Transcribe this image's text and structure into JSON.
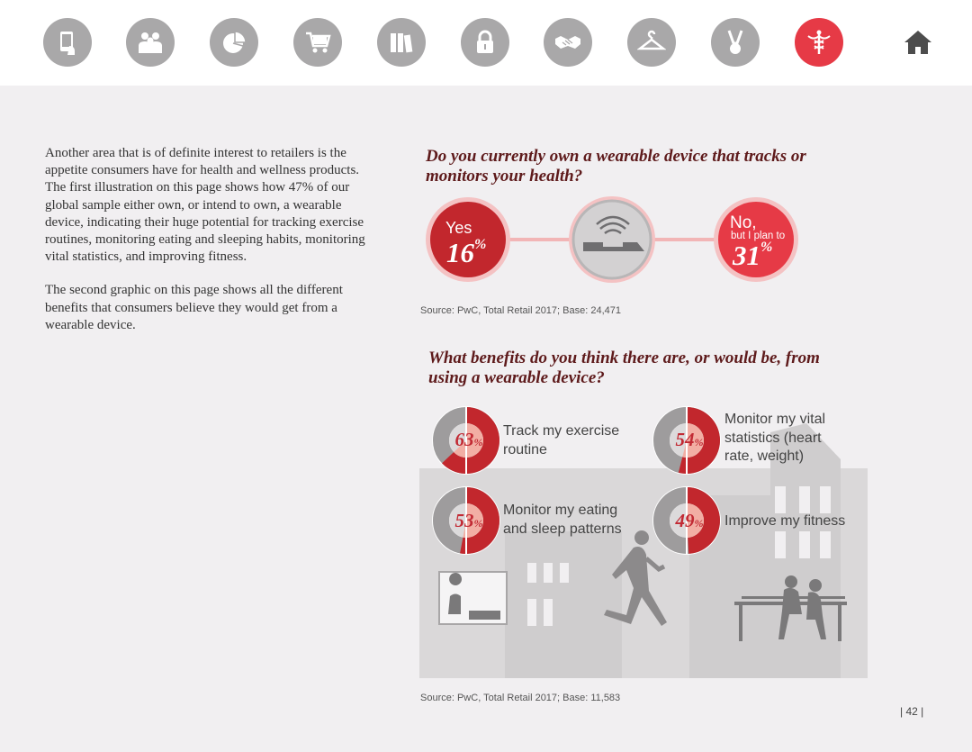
{
  "nav": {
    "icons": [
      "tablet-icon",
      "people-icon",
      "pie-chart-icon",
      "cart-icon",
      "books-icon",
      "lock-icon",
      "handshake-icon",
      "hanger-icon",
      "medal-icon",
      "caduceus-icon"
    ],
    "active_color": "#e63a46",
    "inactive_color": "#a9a8a9"
  },
  "intro": {
    "p1": "Another area that is of definite interest to retailers is the appetite consumers have for health and wellness products. The first illustration on this page shows how 47% of our global sample either own, or intend to own, a wearable device, indicating their huge potential for tracking exercise routines, monitoring eating and sleeping habits, monitoring vital statistics, and improving fitness.",
    "p2": "The second graphic on this page shows all the different benefits that consumers believe they would get from a wearable device."
  },
  "q1": {
    "title": "Do you currently own a wearable device that tracks or monitors your health?",
    "yes_label": "Yes",
    "yes_value": "16",
    "no_label": "No,",
    "no_sub": "but I plan to",
    "no_value": "31",
    "unit": "%",
    "source": "Source: PwC, Total Retail 2017; Base: 24,471"
  },
  "q2": {
    "title": "What benefits do you think there are, or would be, from using a wearable device?",
    "source": "Source: PwC, Total Retail 2017; Base: 11,583",
    "unit": "%",
    "items": [
      {
        "value": 63,
        "label": "Track my exercise routine"
      },
      {
        "value": 54,
        "label": "Monitor my vital statistics (heart rate, weight)"
      },
      {
        "value": 53,
        "label": "Monitor my eating and sleep patterns"
      },
      {
        "value": 49,
        "label": "Improve my fitness"
      }
    ]
  },
  "page_number": "| 42 |"
}
